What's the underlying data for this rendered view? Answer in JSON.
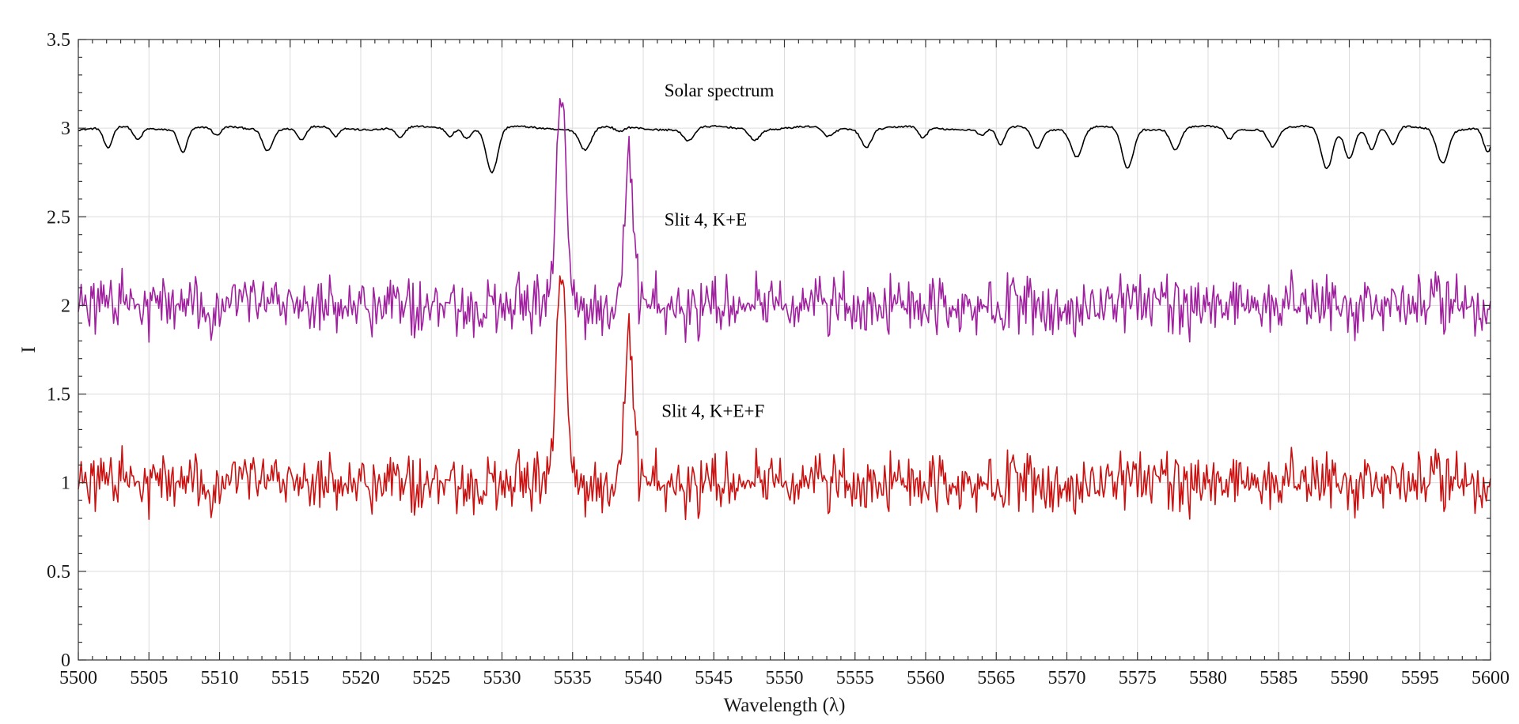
{
  "chart_data": {
    "type": "line",
    "title": "",
    "xlabel": "Wavelength (λ)",
    "ylabel": "I",
    "xlim": [
      5500,
      5600
    ],
    "ylim": [
      0,
      3.5
    ],
    "grid": true,
    "legend": "none",
    "x_ticks": [
      5500,
      5505,
      5510,
      5515,
      5520,
      5525,
      5530,
      5535,
      5540,
      5545,
      5550,
      5555,
      5560,
      5565,
      5570,
      5575,
      5580,
      5585,
      5590,
      5595,
      5600
    ],
    "y_ticks": [
      0,
      0.5,
      1,
      1.5,
      2,
      2.5,
      3,
      3.5
    ],
    "x_tick_labels": [
      "5500",
      "5505",
      "5510",
      "5515",
      "5520",
      "5525",
      "5530",
      "5535",
      "5540",
      "5545",
      "5550",
      "5555",
      "5560",
      "5565",
      "5570",
      "5575",
      "5580",
      "5585",
      "5590",
      "5595",
      "5600"
    ],
    "y_tick_labels": [
      "0",
      "0.5",
      "1",
      "1.5",
      "2",
      "2.5",
      "3",
      "3.5"
    ],
    "series": [
      {
        "label": "Solar spectrum",
        "label_anchor": [
          5541.5,
          3.18
        ],
        "color": "#000000",
        "baseline": 3.0,
        "noise": 0,
        "absorption_lines": [
          [
            5502.1,
            0.12,
            0.3
          ],
          [
            5504.2,
            0.07,
            0.3
          ],
          [
            5507.4,
            0.13,
            0.3
          ],
          [
            5509.8,
            0.05,
            0.3
          ],
          [
            5513.4,
            0.12,
            0.35
          ],
          [
            5515.8,
            0.07,
            0.3
          ],
          [
            5518.2,
            0.05,
            0.25
          ],
          [
            5522.8,
            0.06,
            0.3
          ],
          [
            5526.3,
            0.04,
            0.25
          ],
          [
            5527.5,
            0.05,
            0.25
          ],
          [
            5529.3,
            0.25,
            0.4
          ],
          [
            5535.9,
            0.12,
            0.4
          ],
          [
            5538.3,
            0.03,
            0.3
          ],
          [
            5543.2,
            0.07,
            0.4
          ],
          [
            5547.9,
            0.06,
            0.35
          ],
          [
            5553.1,
            0.05,
            0.4
          ],
          [
            5555.8,
            0.1,
            0.35
          ],
          [
            5559.8,
            0.06,
            0.3
          ],
          [
            5564.0,
            0.04,
            0.3
          ],
          [
            5565.3,
            0.1,
            0.3
          ],
          [
            5567.9,
            0.11,
            0.35
          ],
          [
            5570.7,
            0.16,
            0.4
          ],
          [
            5574.3,
            0.23,
            0.4
          ],
          [
            5577.7,
            0.12,
            0.35
          ],
          [
            5581.5,
            0.06,
            0.3
          ],
          [
            5584.6,
            0.1,
            0.35
          ],
          [
            5588.4,
            0.23,
            0.4
          ],
          [
            5590.0,
            0.16,
            0.35
          ],
          [
            5591.6,
            0.12,
            0.3
          ],
          [
            5593.1,
            0.1,
            0.3
          ],
          [
            5596.6,
            0.19,
            0.4
          ],
          [
            5599.8,
            0.14,
            0.3
          ]
        ],
        "emission_lines": []
      },
      {
        "label": "Slit 4, K+E",
        "label_anchor": [
          5541.5,
          2.45
        ],
        "color": "#a020a0",
        "baseline": 2.0,
        "noise": 0.08,
        "absorption_lines": [],
        "emission_lines": [
          [
            5534.2,
            1.25,
            0.35
          ],
          [
            5539.0,
            0.85,
            0.3
          ]
        ]
      },
      {
        "label": "Slit 4, K+E+F",
        "label_anchor": [
          5541.3,
          1.37
        ],
        "color": "#cc1111",
        "baseline": 1.0,
        "noise": 0.08,
        "absorption_lines": [],
        "emission_lines": [
          [
            5534.2,
            1.25,
            0.35
          ],
          [
            5539.0,
            0.85,
            0.3
          ]
        ]
      }
    ]
  }
}
